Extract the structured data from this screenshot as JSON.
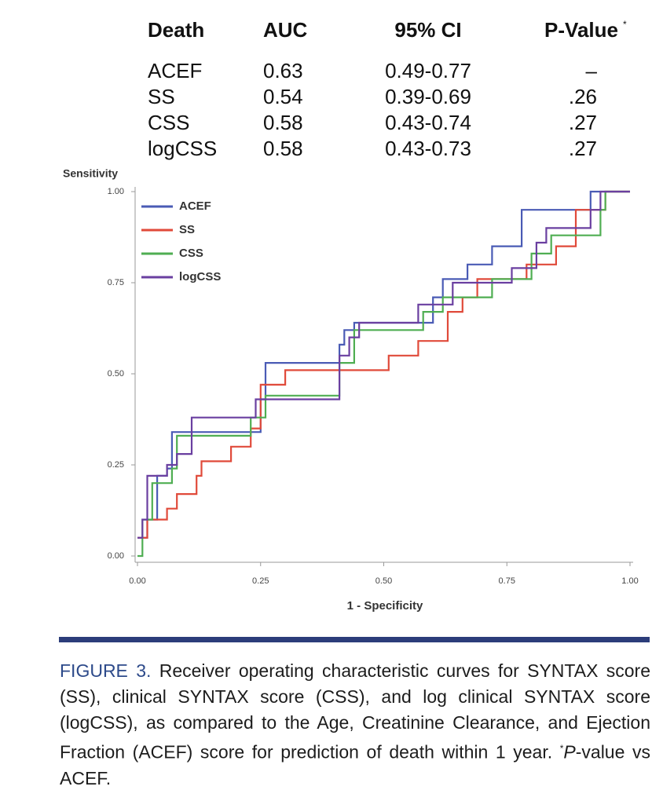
{
  "table": {
    "header": [
      "Death",
      "AUC",
      "95% CI",
      "P-Value"
    ],
    "header_mark": "*",
    "rows": [
      [
        "ACEF",
        "0.63",
        "0.49-0.77",
        "–"
      ],
      [
        "SS",
        "0.54",
        "0.39-0.69",
        ".26"
      ],
      [
        "CSS",
        "0.58",
        "0.43-0.74",
        ".27"
      ],
      [
        "logCSS",
        "0.58",
        "0.43-0.73",
        ".27"
      ]
    ]
  },
  "chart_data": {
    "type": "line",
    "ylabel": "Sensitivity",
    "xlabel": "1 - Specificity",
    "xlim": [
      0,
      1
    ],
    "ylim": [
      0,
      1
    ],
    "xticks": [
      {
        "value": 0,
        "label": "0.00"
      },
      {
        "value": 0.25,
        "label": "0.25"
      },
      {
        "value": 0.5,
        "label": "0.50"
      },
      {
        "value": 0.75,
        "label": "0.75"
      },
      {
        "value": 1,
        "label": "1.00"
      }
    ],
    "yticks": [
      {
        "value": 0,
        "label": "0.00"
      },
      {
        "value": 0.25,
        "label": "0.25"
      },
      {
        "value": 0.5,
        "label": "0.50"
      },
      {
        "value": 0.75,
        "label": "0.75"
      },
      {
        "value": 1,
        "label": "1.00"
      }
    ],
    "series": [
      {
        "name": "ACEF",
        "color": "#4a5bb5",
        "x": [
          0,
          0.02,
          0.02,
          0.04,
          0.04,
          0.06,
          0.06,
          0.07,
          0.07,
          0.25,
          0.25,
          0.26,
          0.26,
          0.41,
          0.41,
          0.42,
          0.42,
          0.44,
          0.44,
          0.6,
          0.6,
          0.62,
          0.62,
          0.67,
          0.67,
          0.72,
          0.72,
          0.78,
          0.78,
          0.92,
          0.92,
          1
        ],
        "values": [
          0.05,
          0.05,
          0.1,
          0.1,
          0.22,
          0.22,
          0.24,
          0.24,
          0.34,
          0.34,
          0.43,
          0.43,
          0.53,
          0.53,
          0.58,
          0.58,
          0.62,
          0.62,
          0.64,
          0.64,
          0.71,
          0.71,
          0.76,
          0.76,
          0.8,
          0.8,
          0.85,
          0.85,
          0.95,
          0.95,
          1,
          1
        ]
      },
      {
        "name": "SS",
        "color": "#e04a3a",
        "x": [
          0,
          0.02,
          0.02,
          0.06,
          0.06,
          0.08,
          0.08,
          0.12,
          0.12,
          0.13,
          0.13,
          0.19,
          0.19,
          0.23,
          0.23,
          0.25,
          0.25,
          0.3,
          0.3,
          0.51,
          0.51,
          0.57,
          0.57,
          0.63,
          0.63,
          0.66,
          0.66,
          0.69,
          0.69,
          0.79,
          0.79,
          0.85,
          0.85,
          0.89,
          0.89,
          0.95,
          0.95,
          1
        ],
        "values": [
          0.05,
          0.05,
          0.1,
          0.1,
          0.13,
          0.13,
          0.17,
          0.17,
          0.22,
          0.22,
          0.26,
          0.26,
          0.3,
          0.3,
          0.35,
          0.35,
          0.47,
          0.47,
          0.51,
          0.51,
          0.55,
          0.55,
          0.59,
          0.59,
          0.67,
          0.67,
          0.71,
          0.71,
          0.76,
          0.76,
          0.8,
          0.8,
          0.85,
          0.85,
          0.95,
          0.95,
          1,
          1
        ]
      },
      {
        "name": "CSS",
        "color": "#4fae52",
        "x": [
          0,
          0.01,
          0.01,
          0.03,
          0.03,
          0.07,
          0.07,
          0.08,
          0.08,
          0.23,
          0.23,
          0.26,
          0.26,
          0.41,
          0.41,
          0.44,
          0.44,
          0.58,
          0.58,
          0.62,
          0.62,
          0.72,
          0.72,
          0.8,
          0.8,
          0.84,
          0.84,
          0.94,
          0.94,
          0.95,
          0.95,
          1
        ],
        "values": [
          0,
          0,
          0.1,
          0.1,
          0.2,
          0.2,
          0.24,
          0.24,
          0.33,
          0.33,
          0.38,
          0.38,
          0.44,
          0.44,
          0.53,
          0.53,
          0.62,
          0.62,
          0.67,
          0.67,
          0.71,
          0.71,
          0.76,
          0.76,
          0.83,
          0.83,
          0.88,
          0.88,
          0.95,
          0.95,
          1,
          1
        ]
      },
      {
        "name": "logCSS",
        "color": "#6a3fa0",
        "x": [
          0,
          0.01,
          0.01,
          0.02,
          0.02,
          0.06,
          0.06,
          0.08,
          0.08,
          0.11,
          0.11,
          0.24,
          0.24,
          0.41,
          0.41,
          0.43,
          0.43,
          0.45,
          0.45,
          0.57,
          0.57,
          0.64,
          0.64,
          0.76,
          0.76,
          0.81,
          0.81,
          0.83,
          0.83,
          0.92,
          0.92,
          0.94,
          0.94,
          1
        ],
        "values": [
          0.05,
          0.05,
          0.1,
          0.1,
          0.22,
          0.22,
          0.25,
          0.25,
          0.28,
          0.28,
          0.38,
          0.38,
          0.43,
          0.43,
          0.55,
          0.55,
          0.6,
          0.6,
          0.64,
          0.64,
          0.69,
          0.69,
          0.75,
          0.75,
          0.79,
          0.79,
          0.86,
          0.86,
          0.9,
          0.9,
          0.95,
          0.95,
          1,
          1
        ]
      }
    ]
  },
  "caption": {
    "label": "FIGURE 3.",
    "text": "Receiver operating characteristic curves for SYNTAX score (SS), clinical SYNTAX score (CSS), and log clinical SYNTAX score (logCSS), as compared to the Age, Creatinine Clearance, and Ejection Fraction (ACEF) score for prediction of death within 1 year.",
    "note_mark": "*",
    "note_italic": "P",
    "note": "-value vs ACEF."
  }
}
